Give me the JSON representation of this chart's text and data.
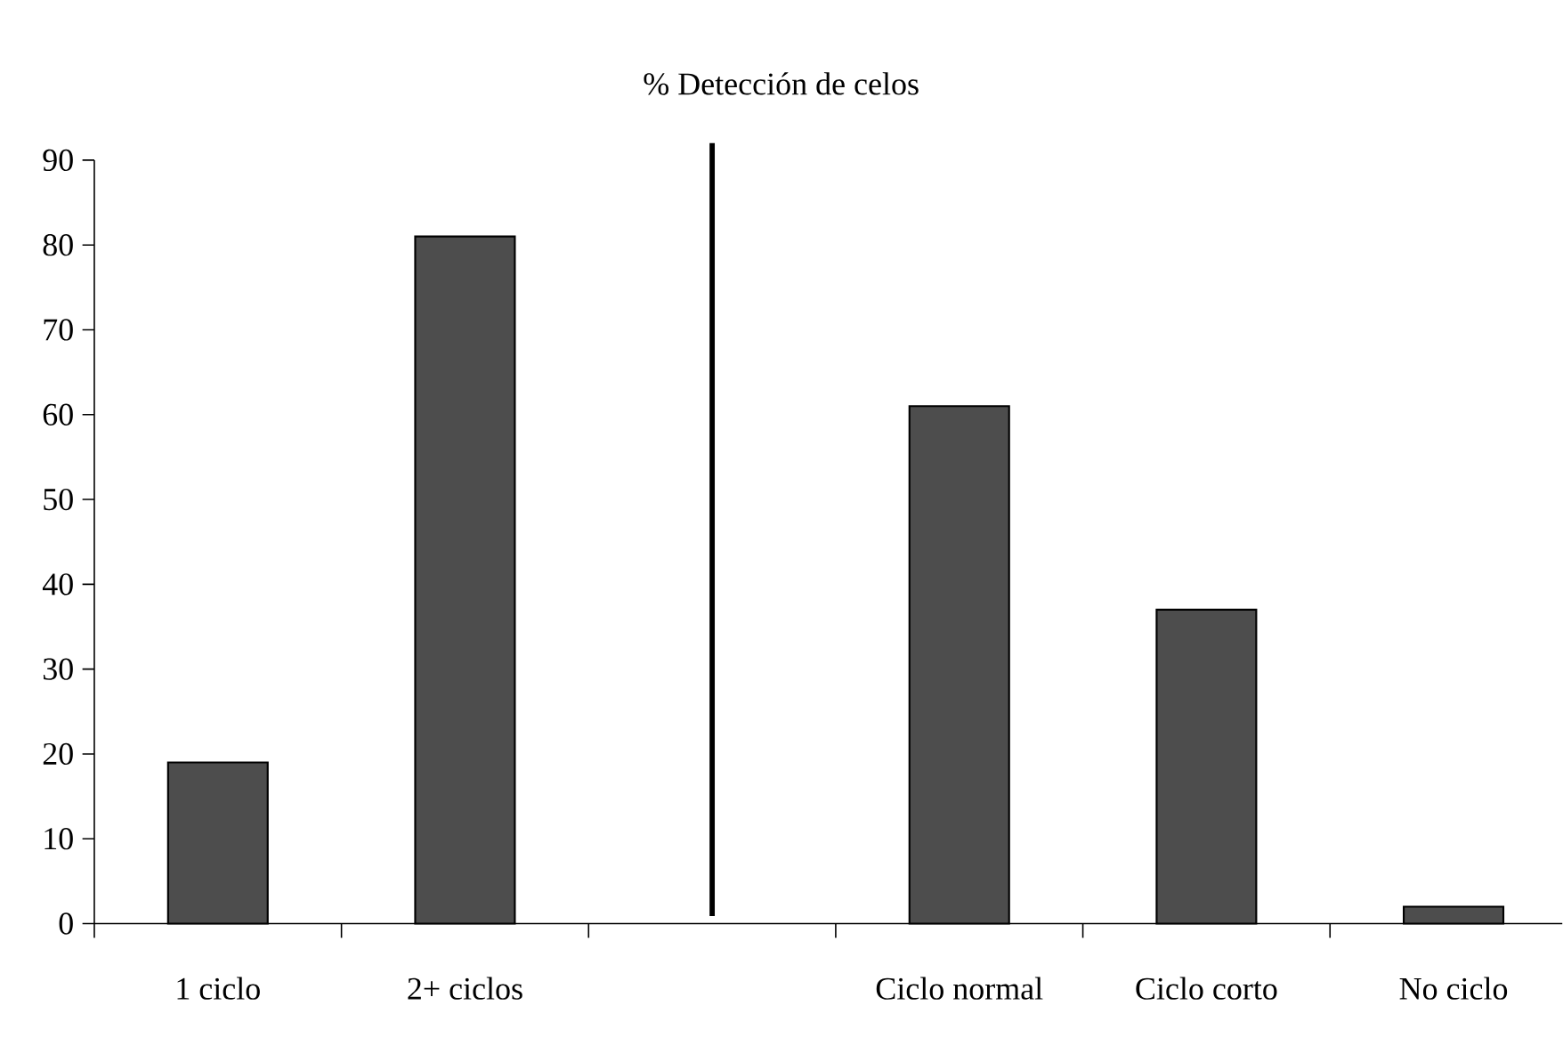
{
  "chart_data": {
    "type": "bar",
    "title": "% Detección de celos",
    "categories": [
      "1 ciclo",
      "2+ ciclos",
      null,
      "Ciclo normal",
      "Ciclo corto",
      "No ciclo"
    ],
    "values": [
      19,
      81,
      null,
      61,
      37,
      2
    ],
    "color": "#4d4d4d",
    "ylim": [
      0,
      90
    ],
    "yticks": [
      0,
      10,
      20,
      30,
      40,
      50,
      60,
      70,
      80,
      90
    ]
  }
}
